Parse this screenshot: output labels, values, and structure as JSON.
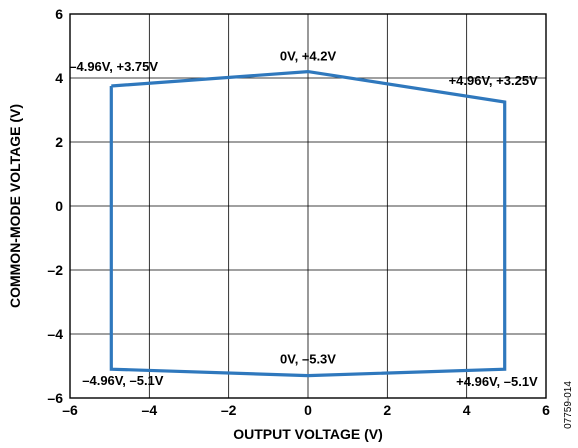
{
  "chart_data": {
    "type": "line",
    "title": "",
    "xlabel": "OUTPUT VOLTAGE (V)",
    "ylabel": "COMMON-MODE VOLTAGE (V)",
    "xlim": [
      -6,
      6
    ],
    "ylim": [
      -6,
      6
    ],
    "xticks": [
      -6,
      -4,
      -2,
      0,
      2,
      4,
      6
    ],
    "yticks": [
      -6,
      -4,
      -2,
      0,
      2,
      4,
      6
    ],
    "xtick_labels": [
      "–6",
      "–4",
      "–2",
      "0",
      "2",
      "4",
      "6"
    ],
    "ytick_labels": [
      "–6",
      "–4",
      "–2",
      "0",
      "2",
      "4",
      "6"
    ],
    "grid": true,
    "series": [
      {
        "color": "#2f78bd",
        "x": [
          -4.96,
          0,
          4.96,
          4.96,
          0,
          -4.96,
          -4.96
        ],
        "y": [
          3.75,
          4.2,
          3.25,
          -5.1,
          -5.3,
          -5.1,
          3.75
        ]
      }
    ],
    "annotations": [
      {
        "text": "–4.96V, +3.75V",
        "x": -4.96,
        "y": 3.75
      },
      {
        "text": "0V, +4.2V",
        "x": 0,
        "y": 4.2
      },
      {
        "text": "+4.96V, +3.25V",
        "x": 4.96,
        "y": 3.25
      },
      {
        "text": "0V, –5.3V",
        "x": 0,
        "y": -5.3
      },
      {
        "text": "–4.96V, –5.1V",
        "x": -4.96,
        "y": -5.1
      },
      {
        "text": "+4.96V, –5.1V",
        "x": 4.96,
        "y": -5.1
      }
    ]
  },
  "figure_id": "07759-014"
}
